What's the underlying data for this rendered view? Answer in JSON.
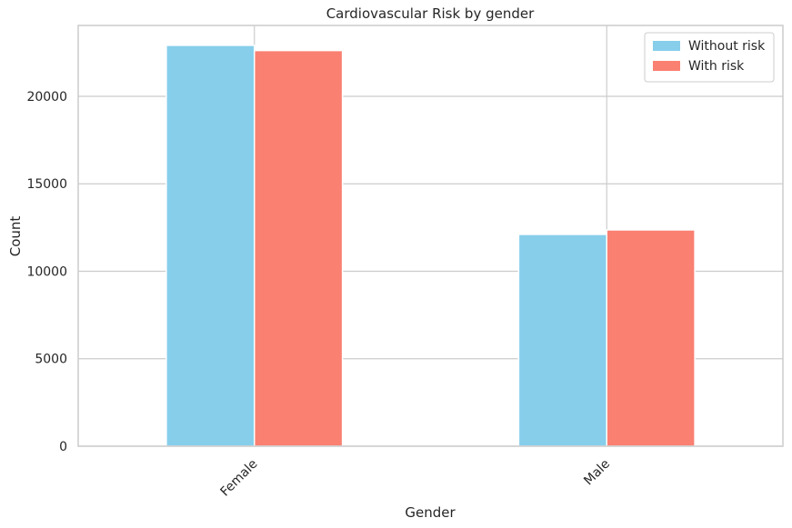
{
  "chart_data": {
    "type": "bar",
    "title": "Cardiovascular Risk by gender",
    "xlabel": "Gender",
    "ylabel": "Count",
    "categories": [
      "Female",
      "Male"
    ],
    "series": [
      {
        "name": "Without risk",
        "values": [
          22914,
          12107
        ],
        "color": "#87CEEB"
      },
      {
        "name": "With risk",
        "values": [
          22616,
          12363
        ],
        "color": "#FA8072"
      }
    ],
    "ylim": [
      0,
      24050
    ],
    "yticks": [
      0,
      5000,
      10000,
      15000,
      20000
    ],
    "ytick_labels": [
      "0",
      "5000",
      "10000",
      "15000",
      "20000"
    ],
    "grid": true,
    "legend": "top-right"
  }
}
